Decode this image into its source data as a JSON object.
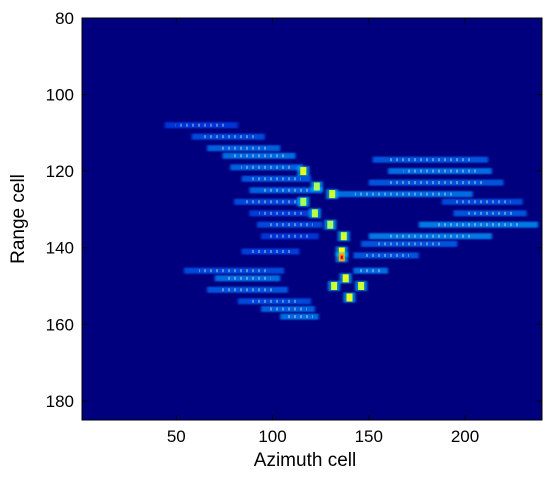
{
  "chart_data": {
    "type": "heatmap",
    "title": "",
    "xlabel": "Azimuth cell",
    "ylabel": "Range cell",
    "xlim": [
      1,
      240
    ],
    "ylim": [
      80,
      185
    ],
    "y_reversed": true,
    "x_ticks": [
      50,
      100,
      150,
      200
    ],
    "y_ticks": [
      80,
      100,
      120,
      140,
      160,
      180
    ],
    "colormap": "jet",
    "background_color": "#00007F",
    "value_range": [
      0,
      1
    ],
    "grid": false,
    "streaks": [
      {
        "y": 108,
        "x0": 44,
        "x1": 82,
        "v": 0.3
      },
      {
        "y": 111,
        "x0": 58,
        "x1": 96,
        "v": 0.4
      },
      {
        "y": 114,
        "x0": 66,
        "x1": 104,
        "v": 0.5
      },
      {
        "y": 116,
        "x0": 74,
        "x1": 112,
        "v": 0.55
      },
      {
        "y": 119,
        "x0": 78,
        "x1": 116,
        "v": 0.5
      },
      {
        "y": 122,
        "x0": 84,
        "x1": 120,
        "v": 0.45
      },
      {
        "y": 125,
        "x0": 88,
        "x1": 126,
        "v": 0.5
      },
      {
        "y": 128,
        "x0": 80,
        "x1": 118,
        "v": 0.4
      },
      {
        "y": 131,
        "x0": 88,
        "x1": 122,
        "v": 0.35
      },
      {
        "y": 134,
        "x0": 92,
        "x1": 126,
        "v": 0.4
      },
      {
        "y": 137,
        "x0": 94,
        "x1": 124,
        "v": 0.3
      },
      {
        "y": 141,
        "x0": 84,
        "x1": 114,
        "v": 0.35
      },
      {
        "y": 146,
        "x0": 54,
        "x1": 106,
        "v": 0.4
      },
      {
        "y": 148,
        "x0": 70,
        "x1": 104,
        "v": 0.55
      },
      {
        "y": 151,
        "x0": 66,
        "x1": 108,
        "v": 0.45
      },
      {
        "y": 154,
        "x0": 82,
        "x1": 120,
        "v": 0.4
      },
      {
        "y": 156,
        "x0": 94,
        "x1": 122,
        "v": 0.5
      },
      {
        "y": 158,
        "x0": 104,
        "x1": 124,
        "v": 0.55
      },
      {
        "y": 117,
        "x0": 152,
        "x1": 212,
        "v": 0.45
      },
      {
        "y": 120,
        "x0": 160,
        "x1": 214,
        "v": 0.55
      },
      {
        "y": 123,
        "x0": 150,
        "x1": 220,
        "v": 0.45
      },
      {
        "y": 126,
        "x0": 132,
        "x1": 204,
        "v": 0.55
      },
      {
        "y": 128,
        "x0": 188,
        "x1": 230,
        "v": 0.4
      },
      {
        "y": 131,
        "x0": 194,
        "x1": 232,
        "v": 0.45
      },
      {
        "y": 134,
        "x0": 176,
        "x1": 238,
        "v": 0.6
      },
      {
        "y": 137,
        "x0": 150,
        "x1": 214,
        "v": 0.6
      },
      {
        "y": 139,
        "x0": 146,
        "x1": 196,
        "v": 0.45
      },
      {
        "y": 142,
        "x0": 142,
        "x1": 176,
        "v": 0.45
      },
      {
        "y": 146,
        "x0": 142,
        "x1": 160,
        "v": 0.55
      }
    ],
    "points": [
      {
        "x": 116,
        "y": 120,
        "v": 0.75
      },
      {
        "x": 123,
        "y": 124,
        "v": 0.6
      },
      {
        "x": 131,
        "y": 126,
        "v": 0.7
      },
      {
        "x": 116,
        "y": 128,
        "v": 0.6
      },
      {
        "x": 122,
        "y": 131,
        "v": 0.65
      },
      {
        "x": 130,
        "y": 134,
        "v": 0.6
      },
      {
        "x": 137,
        "y": 137,
        "v": 0.7
      },
      {
        "x": 136,
        "y": 141,
        "v": 0.8
      },
      {
        "x": 136,
        "y": 142.5,
        "v": 1.0
      },
      {
        "x": 138,
        "y": 148,
        "v": 0.75
      },
      {
        "x": 132,
        "y": 150,
        "v": 0.7
      },
      {
        "x": 146,
        "y": 150,
        "v": 0.7
      },
      {
        "x": 140,
        "y": 153,
        "v": 0.75
      }
    ]
  }
}
